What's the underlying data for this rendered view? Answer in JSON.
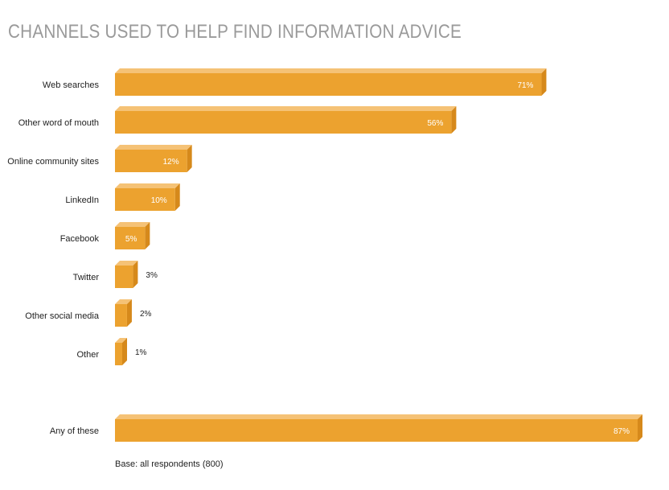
{
  "chart_data": {
    "type": "bar",
    "orientation": "horizontal",
    "title": "CHANNELS USED TO HELP FIND INFORMATION ADVICE",
    "categories": [
      "Web searches",
      "Other word of mouth",
      "Online community sites",
      "LinkedIn",
      "Facebook",
      "Twitter",
      "Other social media",
      "Other",
      "Any of these"
    ],
    "values": [
      71,
      56,
      12,
      10,
      5,
      3,
      2,
      1,
      87
    ],
    "value_labels": [
      "71%",
      "56%",
      "12%",
      "10%",
      "5%",
      "3%",
      "2%",
      "1%",
      "87%"
    ],
    "xlim": [
      0,
      87
    ],
    "grid": false,
    "bar_color": "#eca22f",
    "bar_top_color": "#f5c276",
    "bar_side_color": "#d6891b"
  },
  "footnote": "Base: all respondents (800)"
}
